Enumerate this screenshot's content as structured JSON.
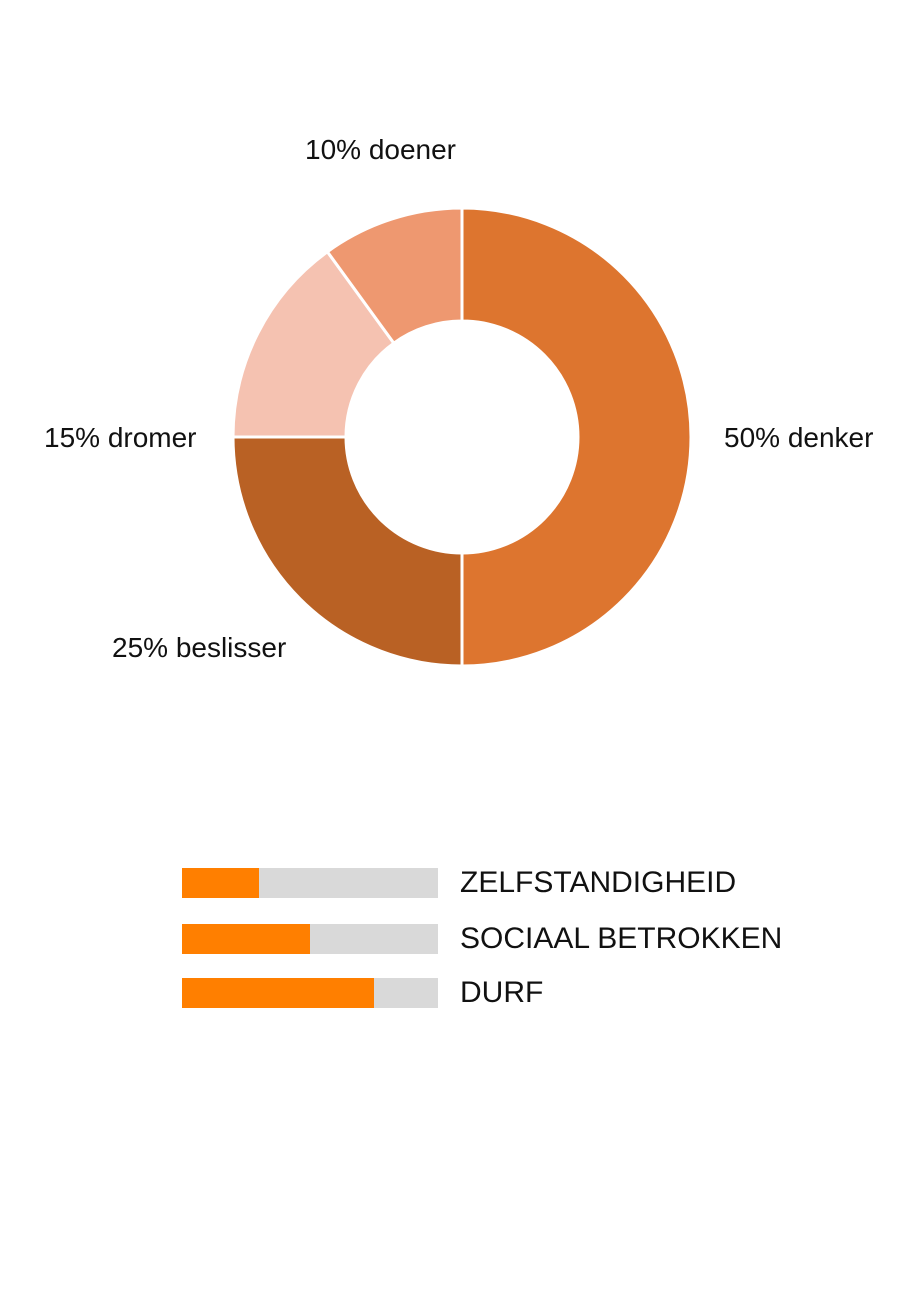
{
  "chart_data": [
    {
      "type": "pie",
      "subtype": "donut",
      "title": "",
      "categories": [
        "denker",
        "beslisser",
        "dromer",
        "doener"
      ],
      "values": [
        50,
        25,
        15,
        10
      ],
      "unit": "%",
      "colors": [
        "#dd752f",
        "#b96124",
        "#f5c2b1",
        "#ee9870"
      ],
      "labels": [
        "50% denker",
        "25% beslisser",
        "15% dromer",
        "10% doener"
      ],
      "start_angle": "12 o'clock, clockwise",
      "legend": "none (direct labels)"
    },
    {
      "type": "bar",
      "orientation": "horizontal",
      "categories": [
        "ZELFSTANDIGHEID",
        "SOCIAAL BETROKKEN",
        "DURF"
      ],
      "values": [
        30,
        50,
        75
      ],
      "max": 100,
      "fill_color": "#ff7f00",
      "track_color": "#d9d9d9",
      "axes": "none",
      "grid": false
    }
  ],
  "donut": {
    "labels": {
      "doener": "10% doener",
      "dromer": "15% dromer",
      "denker": "50% denker",
      "beslisser": "25% beslisser"
    }
  },
  "skills": [
    {
      "label": "ZELFSTANDIGHEID",
      "value": 30
    },
    {
      "label": "SOCIAAL BETROKKEN",
      "value": 50
    },
    {
      "label": "DURF",
      "value": 75
    }
  ]
}
